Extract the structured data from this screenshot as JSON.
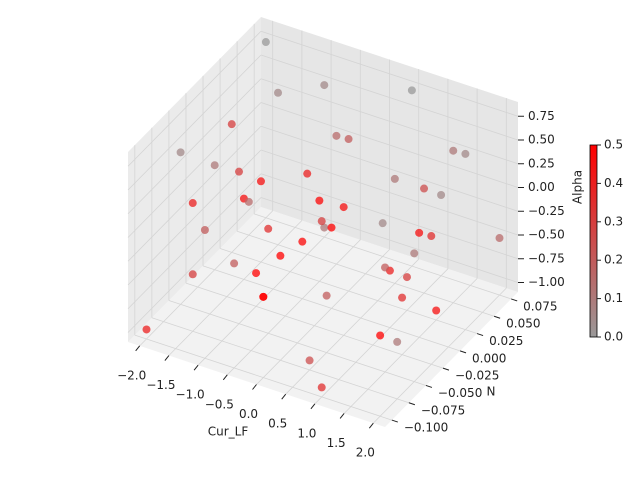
{
  "chart_data": {
    "type": "scatter3d",
    "xlabel": "Cur_LF",
    "ylabel": "N",
    "zlabel": "Alpha",
    "xlim": [
      -2.2,
      2.2
    ],
    "ylim": [
      -0.11,
      0.085
    ],
    "zlim": [
      -1.1,
      0.9
    ],
    "xticks": [
      {
        "value": -2,
        "label": "−2.0"
      },
      {
        "value": -1.5,
        "label": "−1.5"
      },
      {
        "value": -1,
        "label": "−1.0"
      },
      {
        "value": -0.5,
        "label": "−0.5"
      },
      {
        "value": 0,
        "label": "0.0"
      },
      {
        "value": 0.5,
        "label": "0.5"
      },
      {
        "value": 1,
        "label": "1.0"
      },
      {
        "value": 1.5,
        "label": "1.5"
      },
      {
        "value": 2,
        "label": "2.0"
      }
    ],
    "yticks": [
      {
        "value": -0.1,
        "label": "−0.100"
      },
      {
        "value": -0.075,
        "label": "−0.075"
      },
      {
        "value": -0.05,
        "label": "−0.050"
      },
      {
        "value": -0.025,
        "label": "−0.025"
      },
      {
        "value": 0,
        "label": "0.000"
      },
      {
        "value": 0.025,
        "label": "0.025"
      },
      {
        "value": 0.05,
        "label": "0.050"
      },
      {
        "value": 0.075,
        "label": "0.075"
      }
    ],
    "zticks": [
      {
        "value": -1,
        "label": "−1.00"
      },
      {
        "value": -0.75,
        "label": "−0.75"
      },
      {
        "value": -0.5,
        "label": "−0.50"
      },
      {
        "value": -0.25,
        "label": "−0.25"
      },
      {
        "value": 0,
        "label": "0.00"
      },
      {
        "value": 0.25,
        "label": "0.25"
      },
      {
        "value": 0.5,
        "label": "0.50"
      },
      {
        "value": 0.75,
        "label": "0.75"
      }
    ],
    "clim": [
      0,
      0.5
    ],
    "cticks": [
      {
        "value": 0,
        "label": "0.0"
      },
      {
        "value": 0.1,
        "label": "0.1"
      },
      {
        "value": 0.2,
        "label": "0.2"
      },
      {
        "value": 0.3,
        "label": "0.3"
      },
      {
        "value": 0.4,
        "label": "0.4"
      },
      {
        "value": 0.5,
        "label": "0.5"
      }
    ],
    "colormap": [
      "#999999",
      "#ff0000"
    ],
    "grid": true,
    "x": [
      -2,
      -2,
      -2,
      -1.5,
      -1.5,
      -1.5,
      -1,
      -1,
      -1,
      -0.5,
      -0.5,
      -0.5,
      0,
      0,
      0,
      0.5,
      0.5,
      0.5,
      1,
      1,
      1,
      1.5,
      1.5,
      1.5,
      2,
      2,
      2,
      -2,
      -1,
      0,
      1,
      2,
      -1.5,
      -0.5,
      0.5,
      1.5,
      -2,
      -1,
      0,
      1,
      2,
      -1.5,
      -0.5,
      0.5,
      1.5,
      0,
      -1,
      1,
      -2,
      2
    ],
    "y": [
      -0.1,
      0,
      0.075,
      -0.075,
      0.025,
      0.05,
      -0.1,
      -0.025,
      0.075,
      -0.05,
      0,
      0.05,
      -0.1,
      0.025,
      0.075,
      -0.075,
      -0.025,
      0.05,
      -0.1,
      0,
      0.075,
      -0.05,
      0.025,
      0.05,
      -0.1,
      -0.025,
      0.075,
      -0.05,
      0.05,
      -0.075,
      0.025,
      -0.05,
      0,
      -0.1,
      0.075,
      -0.025,
      0.05,
      -0.05,
      0,
      0.05,
      0.025,
      -0.075,
      0.025,
      -0.05,
      0,
      -0.1,
      0.075,
      -0.1,
      0.025,
      -0.075
    ],
    "z": [
      -1,
      0,
      0.75,
      -0.5,
      -0.25,
      0.5,
      0.25,
      -0.75,
      -1,
      0,
      -0.5,
      0.25,
      -0.25,
      0.5,
      -0.75,
      -1,
      0.25,
      0,
      0.75,
      -0.5,
      -0.25,
      0,
      -1,
      0.5,
      -0.25,
      0.25,
      -0.5,
      0.5,
      -0.25,
      0,
      -0.75,
      0.25,
      -0.25,
      0,
      0.75,
      -0.5,
      -0.75,
      0.5,
      -0.25,
      0,
      0.75,
      0.25,
      -0.25,
      -0.5,
      0,
      -0.25,
      0.5,
      -1,
      0.25,
      -0.5
    ],
    "c": [
      0.4,
      0.1,
      0,
      0.3,
      0.45,
      0.05,
      0.2,
      0.5,
      0.1,
      0.35,
      0.48,
      0.15,
      0.5,
      0.2,
      0.05,
      0.25,
      0.45,
      0.1,
      0.3,
      0.4,
      0.05,
      0.2,
      0.45,
      0.1,
      0.5,
      0.35,
      0.15,
      0.05,
      0.4,
      0.5,
      0.3,
      0.1,
      0.45,
      0.2,
      0,
      0.35,
      0.15,
      0.3,
      0.5,
      0.25,
      0.05,
      0.4,
      0.48,
      0.2,
      0.45,
      0.5,
      0.05,
      0.35,
      0.3,
      0.1
    ]
  }
}
